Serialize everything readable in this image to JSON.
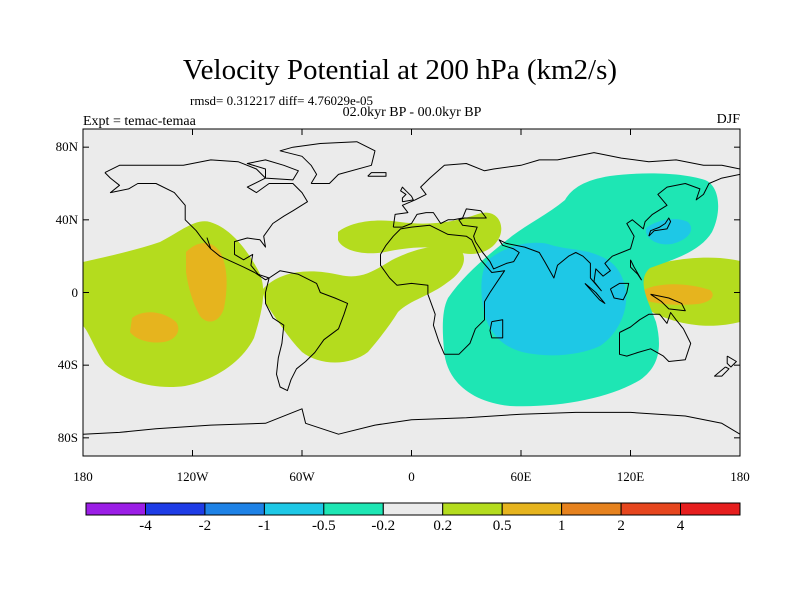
{
  "title": "Velocity Potential at 200 hPa (km2/s)",
  "stats": "rmsd= 0.312217 diff= 4.76029e-05",
  "period": "02.0kyr BP - 00.0kyr BP",
  "experiment": "Expt = temac-temaa",
  "season": "DJF",
  "map": {
    "projection": "cylindrical equidistant",
    "lon_range": [
      -180,
      180
    ],
    "lat_range": [
      -90,
      90
    ],
    "background_color": "#ebebeb",
    "lat_ticks": [
      {
        "value": 80,
        "label": "80N"
      },
      {
        "value": 40,
        "label": "40N"
      },
      {
        "value": 0,
        "label": "0"
      },
      {
        "value": -40,
        "label": "40S"
      },
      {
        "value": -80,
        "label": "80S"
      }
    ],
    "lon_ticks": [
      {
        "value": -180,
        "label": "180"
      },
      {
        "value": -120,
        "label": "120W"
      },
      {
        "value": -60,
        "label": "60W"
      },
      {
        "value": 0,
        "label": "0"
      },
      {
        "value": 60,
        "label": "60E"
      },
      {
        "value": 120,
        "label": "120E"
      },
      {
        "value": 180,
        "label": "180"
      }
    ]
  },
  "colorbar": {
    "colors": [
      "#9b1ee6",
      "#1e3ce6",
      "#1e82e6",
      "#1ec8e6",
      "#1ee6b4",
      "#ebebeb",
      "#b4dc1e",
      "#e6b41e",
      "#e6821e",
      "#e6461e",
      "#e61e1e"
    ],
    "labels": [
      "-4",
      "-2",
      "-1",
      "-0.5",
      "-0.2",
      "0.2",
      "0.5",
      "1",
      "2",
      "4"
    ]
  }
}
